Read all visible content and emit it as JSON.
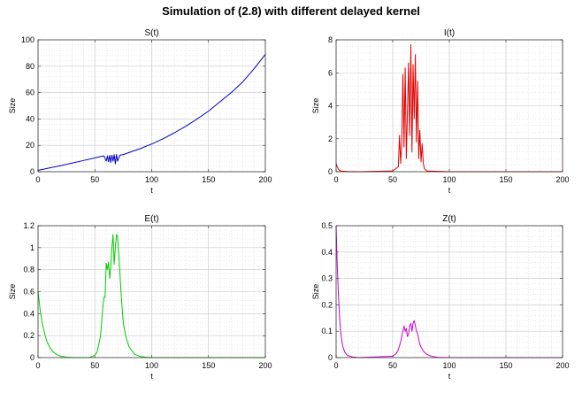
{
  "figure_title": "Simulation of (2.8) with different delayed kernel",
  "chart_data": [
    {
      "type": "line",
      "title": "S(t)",
      "xlabel": "t",
      "ylabel": "Size",
      "xlim": [
        0,
        200
      ],
      "ylim": [
        0,
        100
      ],
      "xticks": [
        0,
        50,
        100,
        150,
        200
      ],
      "yticks": [
        0,
        20,
        40,
        60,
        80,
        100
      ],
      "grid": true,
      "color": "#0000c8",
      "series": [
        {
          "x": [
            0,
            10,
            20,
            30,
            40,
            50,
            55,
            58,
            60,
            61,
            62,
            63,
            64,
            65,
            66,
            67,
            68,
            69,
            70,
            72,
            75,
            80,
            90,
            100,
            110,
            120,
            130,
            140,
            150,
            160,
            170,
            180,
            190,
            200
          ],
          "y": [
            1,
            2.8,
            4.6,
            6.5,
            8.5,
            10.5,
            11.5,
            12,
            8,
            12,
            7.5,
            12.5,
            7,
            12.5,
            8,
            13,
            6,
            13,
            8,
            12.5,
            13,
            14.5,
            17.5,
            21,
            25,
            29.5,
            34.5,
            40,
            46,
            53,
            60,
            68,
            78,
            89
          ]
        }
      ]
    },
    {
      "type": "line",
      "title": "I(t)",
      "xlabel": "t",
      "ylabel": "Size",
      "xlim": [
        0,
        200
      ],
      "ylim": [
        0,
        8
      ],
      "xticks": [
        0,
        50,
        100,
        150,
        200
      ],
      "yticks": [
        0,
        2,
        4,
        6,
        8
      ],
      "grid": true,
      "color": "#e00000",
      "series": [
        {
          "x": [
            0,
            1,
            2,
            3,
            5,
            10,
            20,
            50,
            55,
            56,
            57,
            58,
            59,
            60,
            61,
            62,
            63,
            64,
            65,
            66,
            67,
            68,
            69,
            70,
            71,
            72,
            73,
            74,
            75,
            76,
            77,
            78,
            80,
            100,
            150,
            200
          ],
          "y": [
            0.5,
            0.3,
            0.15,
            0.08,
            0.03,
            0.01,
            0,
            0.05,
            0.3,
            2.2,
            0.5,
            1.8,
            5.9,
            1.5,
            6.3,
            0.8,
            3.5,
            6.6,
            2.2,
            7.7,
            1.2,
            6.5,
            3.2,
            7.1,
            1.8,
            5.5,
            0.8,
            2.5,
            0.6,
            1.7,
            0.5,
            0.2,
            0.05,
            0,
            0,
            0
          ]
        }
      ]
    },
    {
      "type": "line",
      "title": "E(t)",
      "xlabel": "t",
      "ylabel": "Size",
      "xlim": [
        0,
        200
      ],
      "ylim": [
        0,
        1.2
      ],
      "xticks": [
        0,
        50,
        100,
        150,
        200
      ],
      "yticks": [
        0,
        0.2,
        0.4,
        0.6,
        0.8,
        1,
        1.2
      ],
      "grid": true,
      "color": "#00cc00",
      "series": [
        {
          "x": [
            0,
            2,
            4,
            6,
            8,
            10,
            13,
            16,
            20,
            25,
            30,
            45,
            50,
            52,
            55,
            57,
            58,
            59,
            60,
            61,
            62,
            63,
            64,
            65,
            66,
            67,
            68,
            69,
            70,
            71,
            72,
            73,
            74,
            75,
            77,
            80,
            85,
            90,
            95,
            100,
            150,
            200
          ],
          "y": [
            0.6,
            0.42,
            0.3,
            0.21,
            0.14,
            0.1,
            0.055,
            0.03,
            0.012,
            0.004,
            0,
            0,
            0.02,
            0.05,
            0.2,
            0.45,
            0.55,
            0.55,
            0.86,
            0.8,
            0.87,
            0.72,
            0.82,
            1.0,
            1.12,
            0.85,
            1.0,
            1.12,
            1.1,
            0.95,
            0.78,
            0.6,
            0.45,
            0.32,
            0.2,
            0.1,
            0.03,
            0.01,
            0.003,
            0,
            0,
            0
          ]
        }
      ]
    },
    {
      "type": "line",
      "title": "Z(t)",
      "xlabel": "t",
      "ylabel": "Size",
      "xlim": [
        0,
        200
      ],
      "ylim": [
        0,
        0.5
      ],
      "xticks": [
        0,
        50,
        100,
        150,
        200
      ],
      "yticks": [
        0,
        0.1,
        0.2,
        0.3,
        0.4,
        0.5
      ],
      "grid": true,
      "color": "#cc00cc",
      "series": [
        {
          "x": [
            0,
            1,
            2,
            3,
            4,
            5,
            6,
            8,
            10,
            15,
            20,
            50,
            53,
            55,
            57,
            58,
            59,
            60,
            61,
            62,
            63,
            64,
            65,
            66,
            67,
            68,
            69,
            70,
            71,
            72,
            73,
            74,
            75,
            77,
            80,
            85,
            90,
            100,
            150,
            200
          ],
          "y": [
            0.5,
            0.35,
            0.24,
            0.16,
            0.1,
            0.065,
            0.04,
            0.018,
            0.008,
            0.002,
            0,
            0.005,
            0.015,
            0.03,
            0.06,
            0.08,
            0.1,
            0.12,
            0.1,
            0.11,
            0.08,
            0.09,
            0.12,
            0.13,
            0.1,
            0.13,
            0.14,
            0.12,
            0.1,
            0.09,
            0.07,
            0.05,
            0.04,
            0.025,
            0.012,
            0.004,
            0.001,
            0,
            0,
            0
          ]
        }
      ]
    }
  ]
}
